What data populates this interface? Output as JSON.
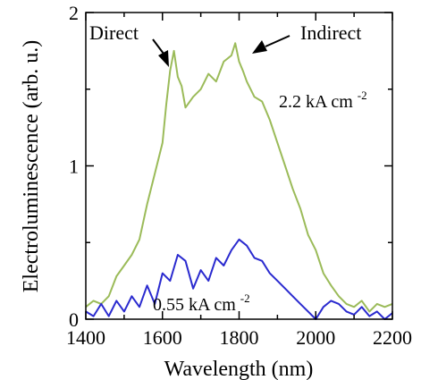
{
  "chart_data": {
    "type": "line",
    "xlabel": "Wavelength (nm)",
    "ylabel": "Electroluminescence (arb. u.)",
    "xlim": [
      1400,
      2200
    ],
    "ylim": [
      0,
      2
    ],
    "xticks": [
      1400,
      1600,
      1800,
      2000,
      2200
    ],
    "yticks": [
      0,
      1,
      2
    ],
    "grid": false,
    "legend": "none",
    "series": [
      {
        "name": "2.2 kA cm",
        "color": "#9bbb59",
        "x": [
          1400,
          1420,
          1440,
          1460,
          1480,
          1500,
          1520,
          1540,
          1560,
          1580,
          1600,
          1610,
          1620,
          1630,
          1640,
          1650,
          1660,
          1680,
          1700,
          1720,
          1740,
          1760,
          1780,
          1790,
          1800,
          1810,
          1820,
          1840,
          1860,
          1880,
          1900,
          1920,
          1940,
          1960,
          1980,
          2000,
          2020,
          2040,
          2060,
          2080,
          2100,
          2120,
          2140,
          2160,
          2180,
          2200
        ],
        "y": [
          0.08,
          0.12,
          0.1,
          0.15,
          0.28,
          0.35,
          0.42,
          0.52,
          0.75,
          0.95,
          1.15,
          1.4,
          1.62,
          1.75,
          1.58,
          1.52,
          1.38,
          1.45,
          1.5,
          1.6,
          1.55,
          1.68,
          1.72,
          1.8,
          1.68,
          1.62,
          1.55,
          1.45,
          1.42,
          1.3,
          1.15,
          1.0,
          0.85,
          0.72,
          0.55,
          0.45,
          0.3,
          0.22,
          0.15,
          0.1,
          0.08,
          0.12,
          0.05,
          0.1,
          0.08,
          0.1
        ]
      },
      {
        "name": "0.55 kA cm",
        "color": "#2a2acf",
        "x": [
          1400,
          1420,
          1440,
          1460,
          1480,
          1500,
          1520,
          1540,
          1560,
          1580,
          1600,
          1620,
          1640,
          1660,
          1680,
          1700,
          1720,
          1740,
          1760,
          1780,
          1800,
          1820,
          1840,
          1860,
          1880,
          1900,
          1920,
          1940,
          1960,
          1980,
          2000,
          2020,
          2040,
          2060,
          2080,
          2100,
          2120,
          2140,
          2160,
          2180,
          2200
        ],
        "y": [
          0.05,
          0.02,
          0.1,
          0.02,
          0.12,
          0.05,
          0.15,
          0.08,
          0.22,
          0.1,
          0.3,
          0.25,
          0.42,
          0.38,
          0.2,
          0.32,
          0.25,
          0.4,
          0.35,
          0.45,
          0.52,
          0.48,
          0.4,
          0.38,
          0.3,
          0.25,
          0.2,
          0.15,
          0.1,
          0.05,
          0.0,
          0.08,
          0.12,
          0.1,
          0.05,
          0.03,
          0.08,
          0.02,
          0.05,
          0.0,
          0.04
        ]
      }
    ],
    "annotations": {
      "direct": "Direct",
      "indirect": "Indirect",
      "high_prefix": "2.2 kA cm",
      "low_prefix": "0.55 kA cm",
      "superscript": "-2"
    }
  }
}
